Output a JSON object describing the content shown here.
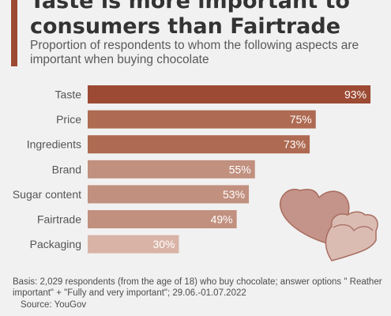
{
  "header": {
    "title": "Taste is more important to\nconsumers than Fairtrade",
    "subtitle": "Proportion of respondents to whom the following aspects are important when buying chocolate"
  },
  "chart_data": {
    "type": "bar",
    "orientation": "horizontal",
    "categories": [
      "Taste",
      "Price",
      "Ingredients",
      "Brand",
      "Sugar content",
      "Fairtrade",
      "Packaging"
    ],
    "values": [
      93,
      75,
      73,
      55,
      53,
      49,
      30
    ],
    "value_labels": [
      "93%",
      "75%",
      "73%",
      "55%",
      "53%",
      "49%",
      "30%"
    ],
    "unit": "%",
    "xlim": [
      0,
      100
    ],
    "grid": false,
    "bar_colors": [
      "#9c4a33",
      "#ae6a52",
      "#ae6a52",
      "#c1907f",
      "#c1907f",
      "#c1907f",
      "#d9b4a6"
    ]
  },
  "illustration": {
    "name": "chocolate-hearts-icon",
    "colors": [
      "#c49389",
      "#dbbcb3"
    ]
  },
  "footnote": {
    "basis": "Basis: 2,029 respondents (from the age of 18) who buy chocolate; answer options \" Reather important\" + \"Fully and very important\"; 29.06.-01.07.2022",
    "source": "Source: YouGov"
  }
}
